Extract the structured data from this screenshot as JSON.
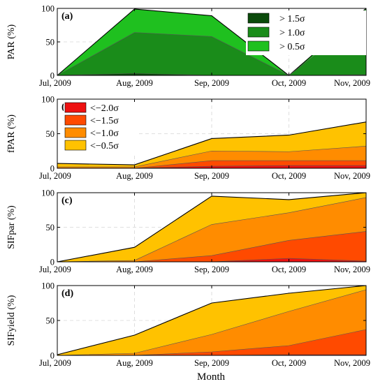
{
  "figure": {
    "xlabel": "Month"
  },
  "chart_data": [
    {
      "type": "area",
      "panel_label": "(a)",
      "ylabel": "PAR (%)",
      "ylim": [
        0,
        100
      ],
      "yticks": [
        0,
        50,
        100
      ],
      "categories": [
        "Jul, 2009",
        "Aug, 2009",
        "Sep, 2009",
        "Oct, 2009",
        "Nov, 2009"
      ],
      "grid": true,
      "legend_placement": "top-right",
      "series": [
        {
          "name": "> 0.5σ",
          "values": [
            0,
            99,
            89,
            0,
            100
          ],
          "color": "#1fc01f"
        },
        {
          "name": "> 1.0σ",
          "values": [
            0,
            64,
            58,
            0,
            90
          ],
          "color": "#1a8c1a"
        },
        {
          "name": "> 1.5σ",
          "values": [
            0,
            3,
            0,
            0,
            1
          ],
          "color": "#0b4a0b"
        }
      ]
    },
    {
      "type": "area",
      "panel_label": "(b)",
      "ylabel": "fPAR (%)",
      "ylim": [
        0,
        100
      ],
      "yticks": [
        0,
        50,
        100
      ],
      "categories": [
        "Jul, 2009",
        "Aug, 2009",
        "Sep, 2009",
        "Oct, 2009",
        "Nov, 2009"
      ],
      "grid": true,
      "legend_placement": "top-left",
      "series": [
        {
          "name": "<−0.5σ",
          "values": [
            7,
            5,
            43,
            48,
            67
          ],
          "color": "#ffc200"
        },
        {
          "name": "<−1.0σ",
          "values": [
            2,
            2,
            25,
            24,
            32
          ],
          "color": "#ff8c00"
        },
        {
          "name": "<−1.5σ",
          "values": [
            0,
            0,
            11,
            11,
            11
          ],
          "color": "#ff4a00"
        },
        {
          "name": "<−2.0σ",
          "values": [
            0,
            0,
            3,
            4,
            4
          ],
          "color": "#ee1111"
        }
      ]
    },
    {
      "type": "area",
      "panel_label": "(c)",
      "ylabel": "SIFpar (%)",
      "ylim": [
        0,
        100
      ],
      "yticks": [
        0,
        50,
        100
      ],
      "categories": [
        "Jul, 2009",
        "Aug, 2009",
        "Sep, 2009",
        "Oct, 2009",
        "Nov, 2009"
      ],
      "grid": true,
      "series": [
        {
          "name": "<−0.5σ",
          "values": [
            0,
            21,
            95,
            90,
            100
          ],
          "color": "#ffc200"
        },
        {
          "name": "<−1.0σ",
          "values": [
            0,
            2,
            54,
            71,
            93
          ],
          "color": "#ff8c00"
        },
        {
          "name": "<−1.5σ",
          "values": [
            0,
            0,
            9,
            31,
            44
          ],
          "color": "#ff4a00"
        },
        {
          "name": "<−2.0σ",
          "values": [
            0,
            0,
            0,
            5,
            1
          ],
          "color": "#ee1111"
        }
      ]
    },
    {
      "type": "area",
      "panel_label": "(d)",
      "ylabel": "SIFyield (%)",
      "ylim": [
        0,
        100
      ],
      "yticks": [
        0,
        50,
        100
      ],
      "categories": [
        "Jul, 2009",
        "Aug, 2009",
        "Sep, 2009",
        "Oct, 2009",
        "Nov, 2009"
      ],
      "grid": true,
      "series": [
        {
          "name": "<−0.5σ",
          "values": [
            1,
            29,
            75,
            89,
            100
          ],
          "color": "#ffc200"
        },
        {
          "name": "<−1.0σ",
          "values": [
            0,
            3,
            30,
            63,
            94
          ],
          "color": "#ff8c00"
        },
        {
          "name": "<−1.5σ",
          "values": [
            0,
            0,
            5,
            14,
            37
          ],
          "color": "#ff4a00"
        },
        {
          "name": "<−2.0σ",
          "values": [
            0,
            0,
            0,
            1,
            1
          ],
          "color": "#ee1111"
        }
      ]
    }
  ]
}
